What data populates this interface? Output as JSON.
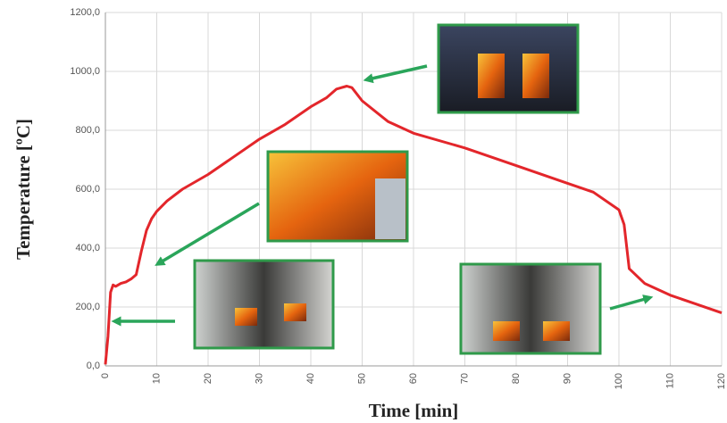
{
  "chart_data": {
    "type": "line",
    "x_label": "Time [min]",
    "y_label": "Temperature [ºC]",
    "xlim": [
      0,
      120
    ],
    "xticks": [
      0,
      10,
      20,
      30,
      40,
      50,
      60,
      70,
      80,
      90,
      100,
      110,
      120
    ],
    "ylim": [
      0,
      1200
    ],
    "yticks": [
      {
        "value": 0,
        "label": "0,0"
      },
      {
        "value": 200,
        "label": "200,0"
      },
      {
        "value": 400,
        "label": "400,0"
      },
      {
        "value": 600,
        "label": "600,0"
      },
      {
        "value": 800,
        "label": "800,0"
      },
      {
        "value": 1000,
        "label": "1000,0"
      },
      {
        "value": 1200,
        "label": "1200,0"
      }
    ],
    "grid": true,
    "series": [
      {
        "color": "#e3262b",
        "x": [
          0,
          0.5,
          1,
          1.5,
          2,
          3,
          4,
          5,
          6,
          7,
          8,
          9,
          10,
          12,
          15,
          20,
          25,
          30,
          35,
          40,
          43,
          45,
          47,
          48,
          50,
          55,
          60,
          70,
          80,
          90,
          95,
          100,
          101,
          102,
          105,
          110,
          115,
          120
        ],
        "values": [
          5,
          100,
          250,
          275,
          270,
          280,
          285,
          295,
          310,
          390,
          460,
          500,
          525,
          560,
          600,
          650,
          710,
          770,
          820,
          880,
          910,
          940,
          950,
          945,
          900,
          830,
          790,
          740,
          680,
          620,
          590,
          530,
          480,
          330,
          280,
          240,
          210,
          180
        ]
      }
    ]
  }
}
